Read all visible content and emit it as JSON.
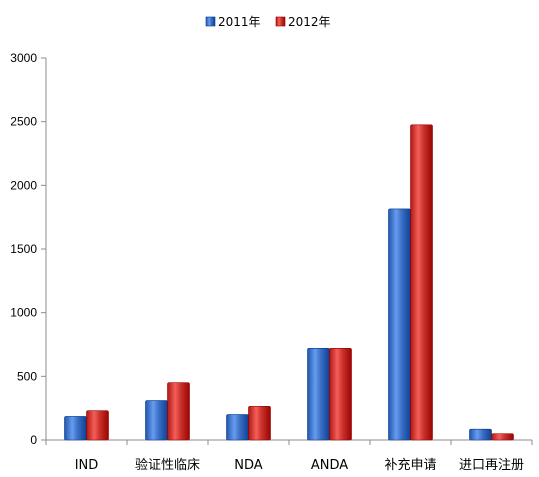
{
  "chart_data": {
    "type": "bar",
    "categories": [
      "IND",
      "验证性临床",
      "NDA",
      "ANDA",
      "补充申请",
      "进口再注册"
    ],
    "series": [
      {
        "name": "2011年",
        "color": "#3a6fc4",
        "values": [
          185,
          310,
          200,
          720,
          1815,
          85
        ]
      },
      {
        "name": "2012年",
        "color": "#c8312c",
        "values": [
          230,
          450,
          265,
          720,
          2475,
          50
        ]
      }
    ],
    "y_ticks": [
      0,
      500,
      1000,
      1500,
      2000,
      2500,
      3000
    ],
    "ylim": [
      0,
      3000
    ],
    "legend_position": "top-center",
    "grid": false
  }
}
